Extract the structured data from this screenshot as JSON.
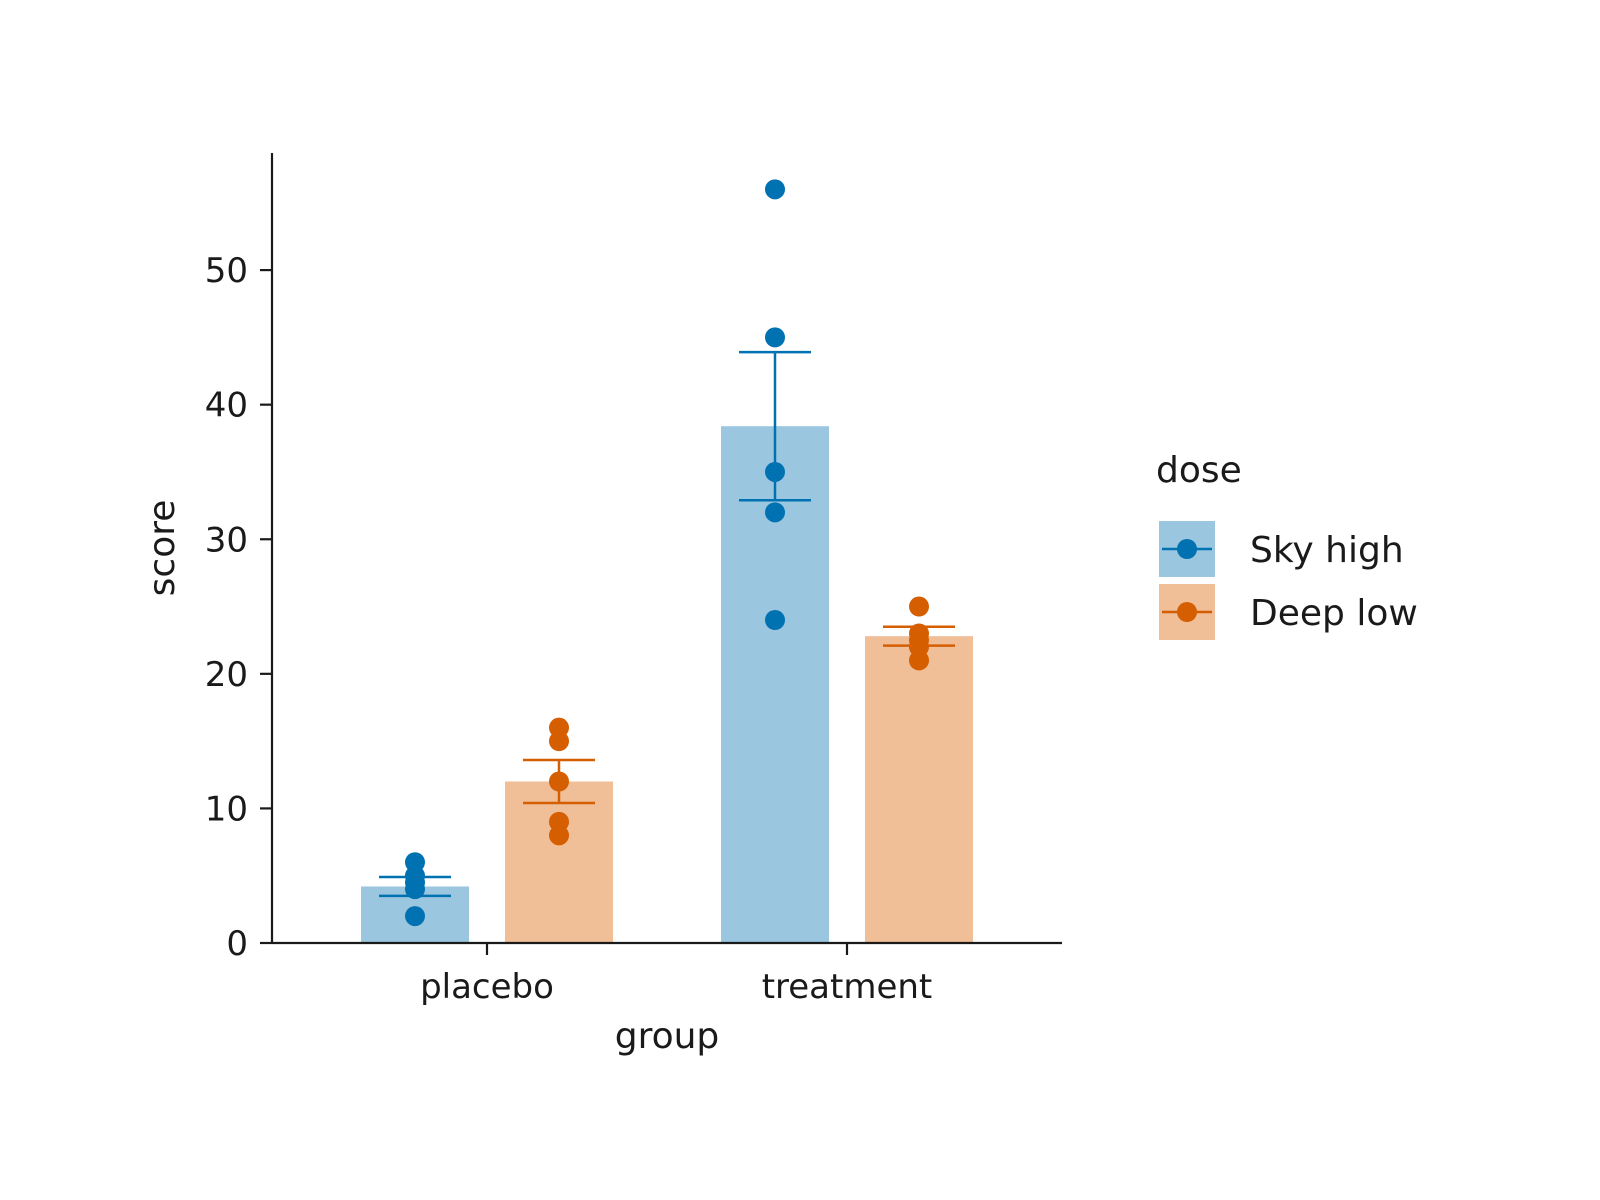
{
  "chart_data": {
    "type": "bar",
    "xlabel": "group",
    "ylabel": "score",
    "categories": [
      "placebo",
      "treatment"
    ],
    "ylim": [
      0,
      58.7
    ],
    "yticks": [
      0,
      10,
      20,
      30,
      40,
      50
    ],
    "grid": false,
    "legend": {
      "title": "dose",
      "placement": "right"
    },
    "series": [
      {
        "name": "Sky high",
        "color": "#0072b2",
        "bar_color": "#9bc6df",
        "values": [
          4.2,
          38.4
        ],
        "error_low": [
          3.5,
          32.9
        ],
        "error_high": [
          4.9,
          43.9
        ],
        "points": [
          [
            2,
            4,
            4.5,
            5,
            6
          ],
          [
            24,
            32,
            35,
            45,
            56
          ]
        ]
      },
      {
        "name": "Deep low",
        "color": "#d55e00",
        "bar_color": "#f0bf98",
        "values": [
          12.0,
          22.8
        ],
        "error_low": [
          10.4,
          22.1
        ],
        "error_high": [
          13.6,
          23.5
        ],
        "points": [
          [
            8,
            9,
            12,
            15,
            16
          ],
          [
            21,
            22,
            22.5,
            23,
            25
          ]
        ]
      }
    ]
  }
}
